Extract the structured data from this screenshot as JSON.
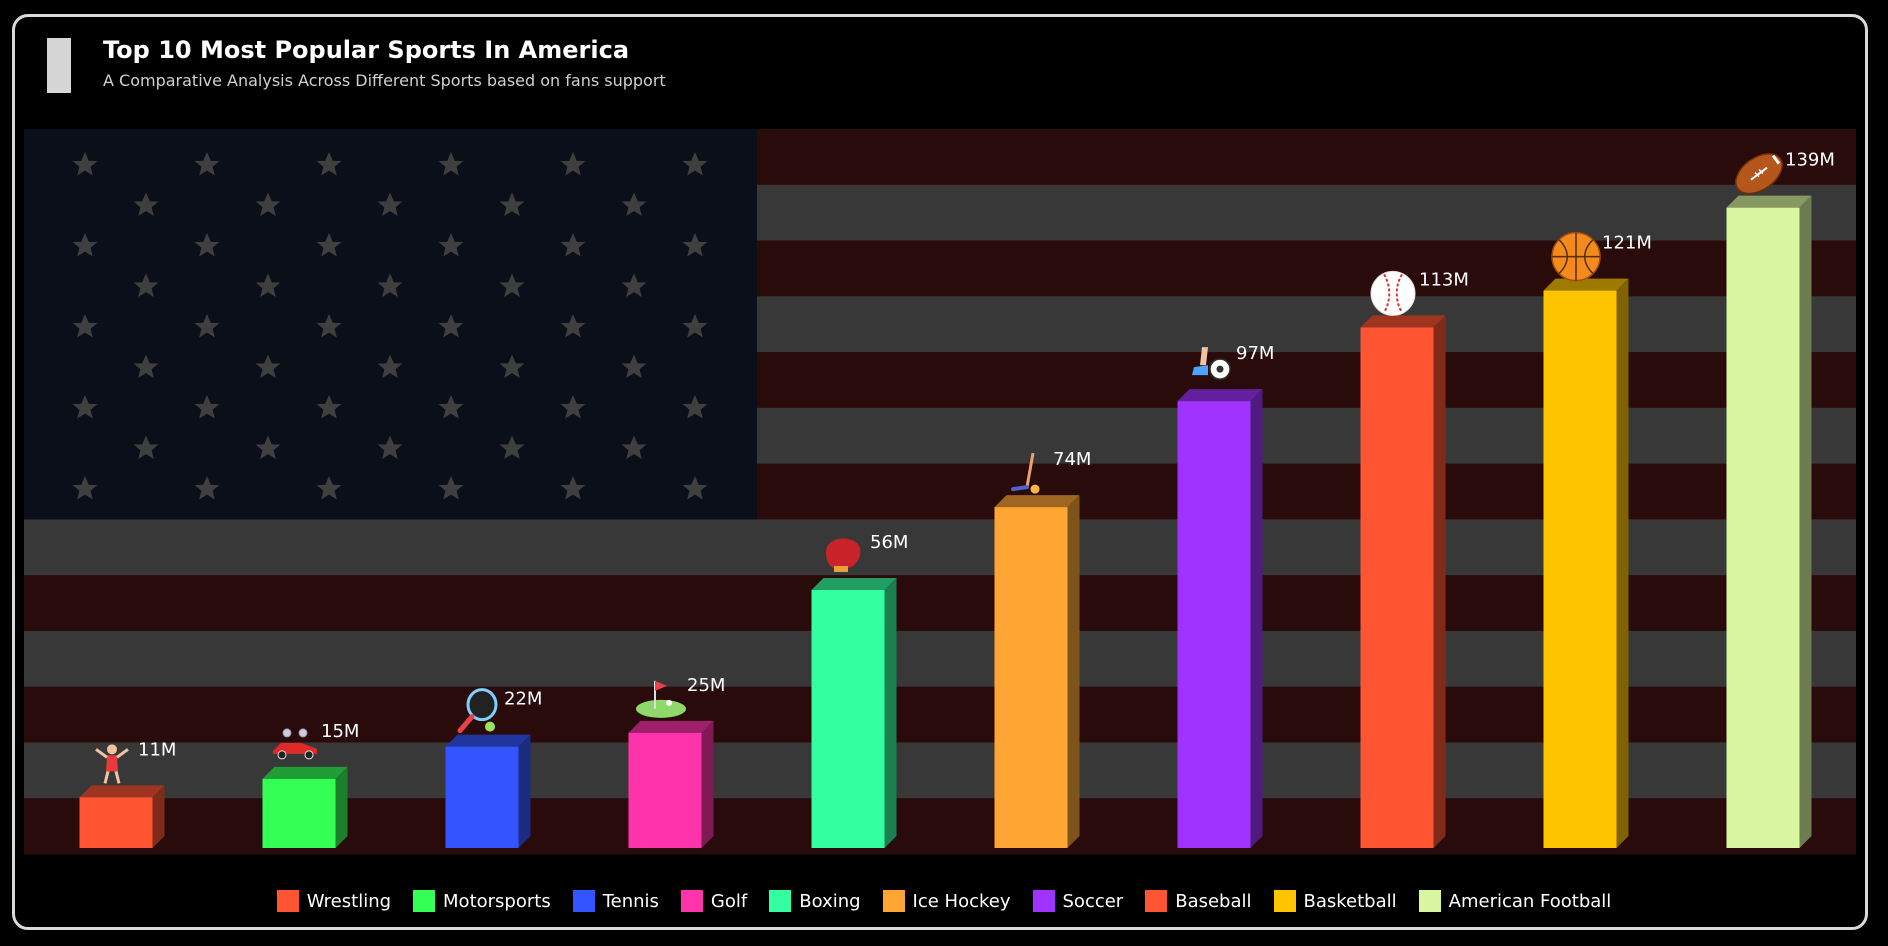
{
  "header": {
    "title": "Top 10 Most Popular Sports In America",
    "subtitle": "A Comparative Analysis Across Different Sports based on fans support"
  },
  "chart_data": {
    "type": "bar",
    "title": "Top 10 Most Popular Sports In America",
    "subtitle": "A Comparative Analysis Across Different Sports based on fans support",
    "categories": [
      "Wrestling",
      "Motorsports",
      "Tennis",
      "Golf",
      "Boxing",
      "Ice Hockey",
      "Soccer",
      "Baseball",
      "Basketball",
      "American Football"
    ],
    "values": [
      11,
      15,
      22,
      25,
      56,
      74,
      97,
      113,
      121,
      139
    ],
    "data_labels": [
      "11M",
      "15M",
      "22M",
      "25M",
      "56M",
      "74M",
      "97M",
      "113M",
      "121M",
      "139M"
    ],
    "unit": "M",
    "colors": [
      "#ff5533",
      "#33ff55",
      "#3355ff",
      "#ff33aa",
      "#33ffa0",
      "#ffa533",
      "#a033ff",
      "#ff5533",
      "#ffc400",
      "#d9f5a0"
    ],
    "icons": [
      "wrestler-icon",
      "race-car-icon",
      "tennis-racket-icon",
      "golf-flag-icon",
      "boxing-glove-icon",
      "hockey-stick-icon",
      "soccer-kick-icon",
      "baseball-icon",
      "basketball-icon",
      "american-football-icon"
    ],
    "ylim": [
      0,
      145
    ],
    "grid": false,
    "legend_position": "bottom",
    "background": "us-flag"
  }
}
